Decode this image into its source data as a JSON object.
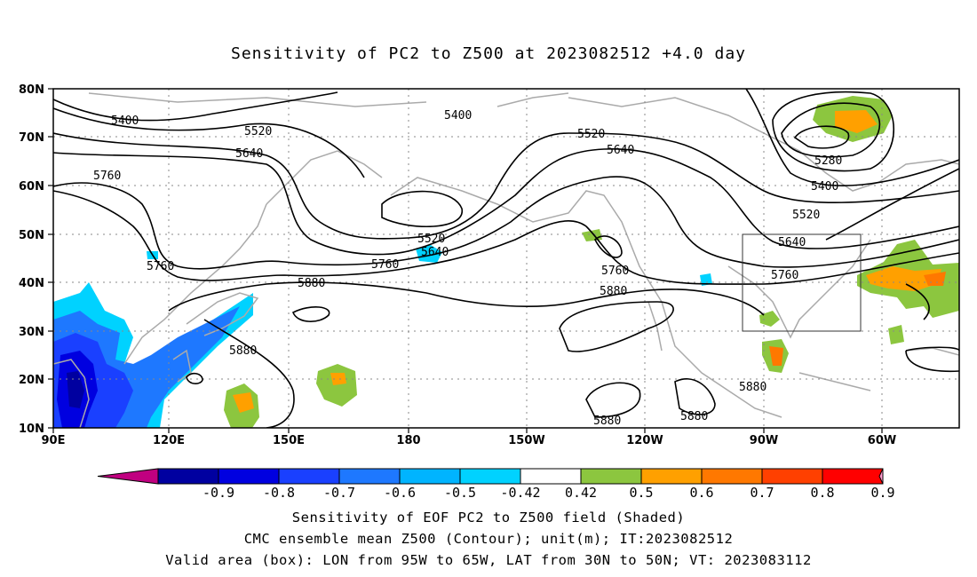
{
  "title": "Sensitivity of PC2 to Z500 at 2023082512 +4.0 day",
  "lat_labels": [
    "80N",
    "70N",
    "60N",
    "50N",
    "40N",
    "30N",
    "20N",
    "10N"
  ],
  "lon_labels": [
    "90E",
    "120E",
    "150E",
    "180",
    "150W",
    "120W",
    "90W",
    "60W"
  ],
  "contour_labels": [
    {
      "text": "5400"
    },
    {
      "text": "5520"
    },
    {
      "text": "5640"
    },
    {
      "text": "5760"
    },
    {
      "text": "5400"
    },
    {
      "text": "5520"
    },
    {
      "text": "5640"
    },
    {
      "text": "5520"
    },
    {
      "text": "5640"
    },
    {
      "text": "5760"
    },
    {
      "text": "5880"
    },
    {
      "text": "5760"
    },
    {
      "text": "5880"
    },
    {
      "text": "5880"
    },
    {
      "text": "5280"
    },
    {
      "text": "5400"
    },
    {
      "text": "5520"
    },
    {
      "text": "5640"
    },
    {
      "text": "5760"
    },
    {
      "text": "5880"
    },
    {
      "text": "5880"
    },
    {
      "text": "5880"
    },
    {
      "text": "5760"
    }
  ],
  "colorbar": {
    "labels": [
      "-0.9",
      "-0.8",
      "-0.7",
      "-0.6",
      "-0.5",
      "-0.42",
      "0.42",
      "0.5",
      "0.6",
      "0.7",
      "0.8",
      "0.9"
    ],
    "colors": [
      "#c00080",
      "#0000a0",
      "#0000e0",
      "#1a40ff",
      "#1e78ff",
      "#00b4ff",
      "#00d2ff",
      "#ffffff",
      "#8cc63f",
      "#ffa000",
      "#ff7800",
      "#ff4000",
      "#ff0000",
      "#ff99cc"
    ]
  },
  "captions": [
    "Sensitivity of EOF PC2 to Z500 field (Shaded)",
    "CMC ensemble mean Z500 (Contour); unit(m); IT:2023082512",
    "Valid area (box): LON from 95W to 65W, LAT from 30N to 50N; VT: 2023083112"
  ]
}
